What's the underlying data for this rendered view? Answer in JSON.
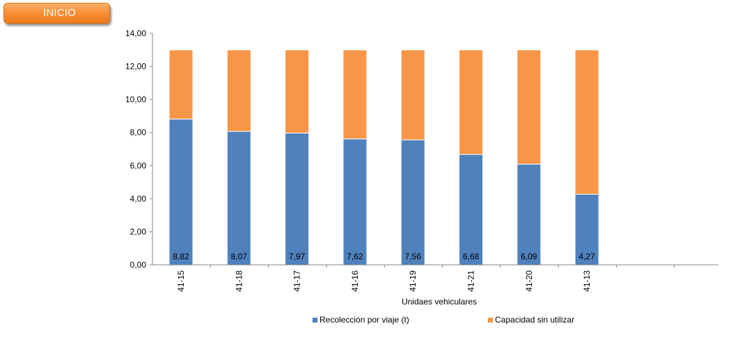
{
  "home_button": {
    "label": "INICIO"
  },
  "colors": {
    "recoleccion": "#4f81bd",
    "capacidad": "#f79646",
    "axis": "#868686",
    "button": "#f7913a"
  },
  "chart_data": {
    "type": "bar",
    "stacked": true,
    "categories": [
      "41-15",
      "41-18",
      "41-17",
      "41-16",
      "41-19",
      "41-21",
      "41-20",
      "41-13"
    ],
    "series": [
      {
        "name": "Recolección por viaje (t)",
        "values": [
          8.82,
          8.07,
          7.97,
          7.62,
          7.56,
          6.68,
          6.09,
          4.27
        ],
        "data_labels": [
          "8,82",
          "8,07",
          "7,97",
          "7,62",
          "7,56",
          "6,68",
          "6,09",
          "4,27"
        ]
      },
      {
        "name": "Capacidad sin utilizar",
        "values": [
          4.18,
          4.93,
          5.03,
          5.38,
          5.44,
          6.32,
          6.91,
          8.73
        ]
      }
    ],
    "xlabel": "Unidaes vehiculares",
    "ylabel": "",
    "ylim": [
      0,
      14
    ],
    "yticks": [
      0,
      2,
      4,
      6,
      8,
      10,
      12,
      14
    ],
    "ytick_labels": [
      "0,00",
      "2,00",
      "4,00",
      "6,00",
      "8,00",
      "10,00",
      "12,00",
      "14,00"
    ],
    "grid": false,
    "legend_position": "bottom"
  }
}
